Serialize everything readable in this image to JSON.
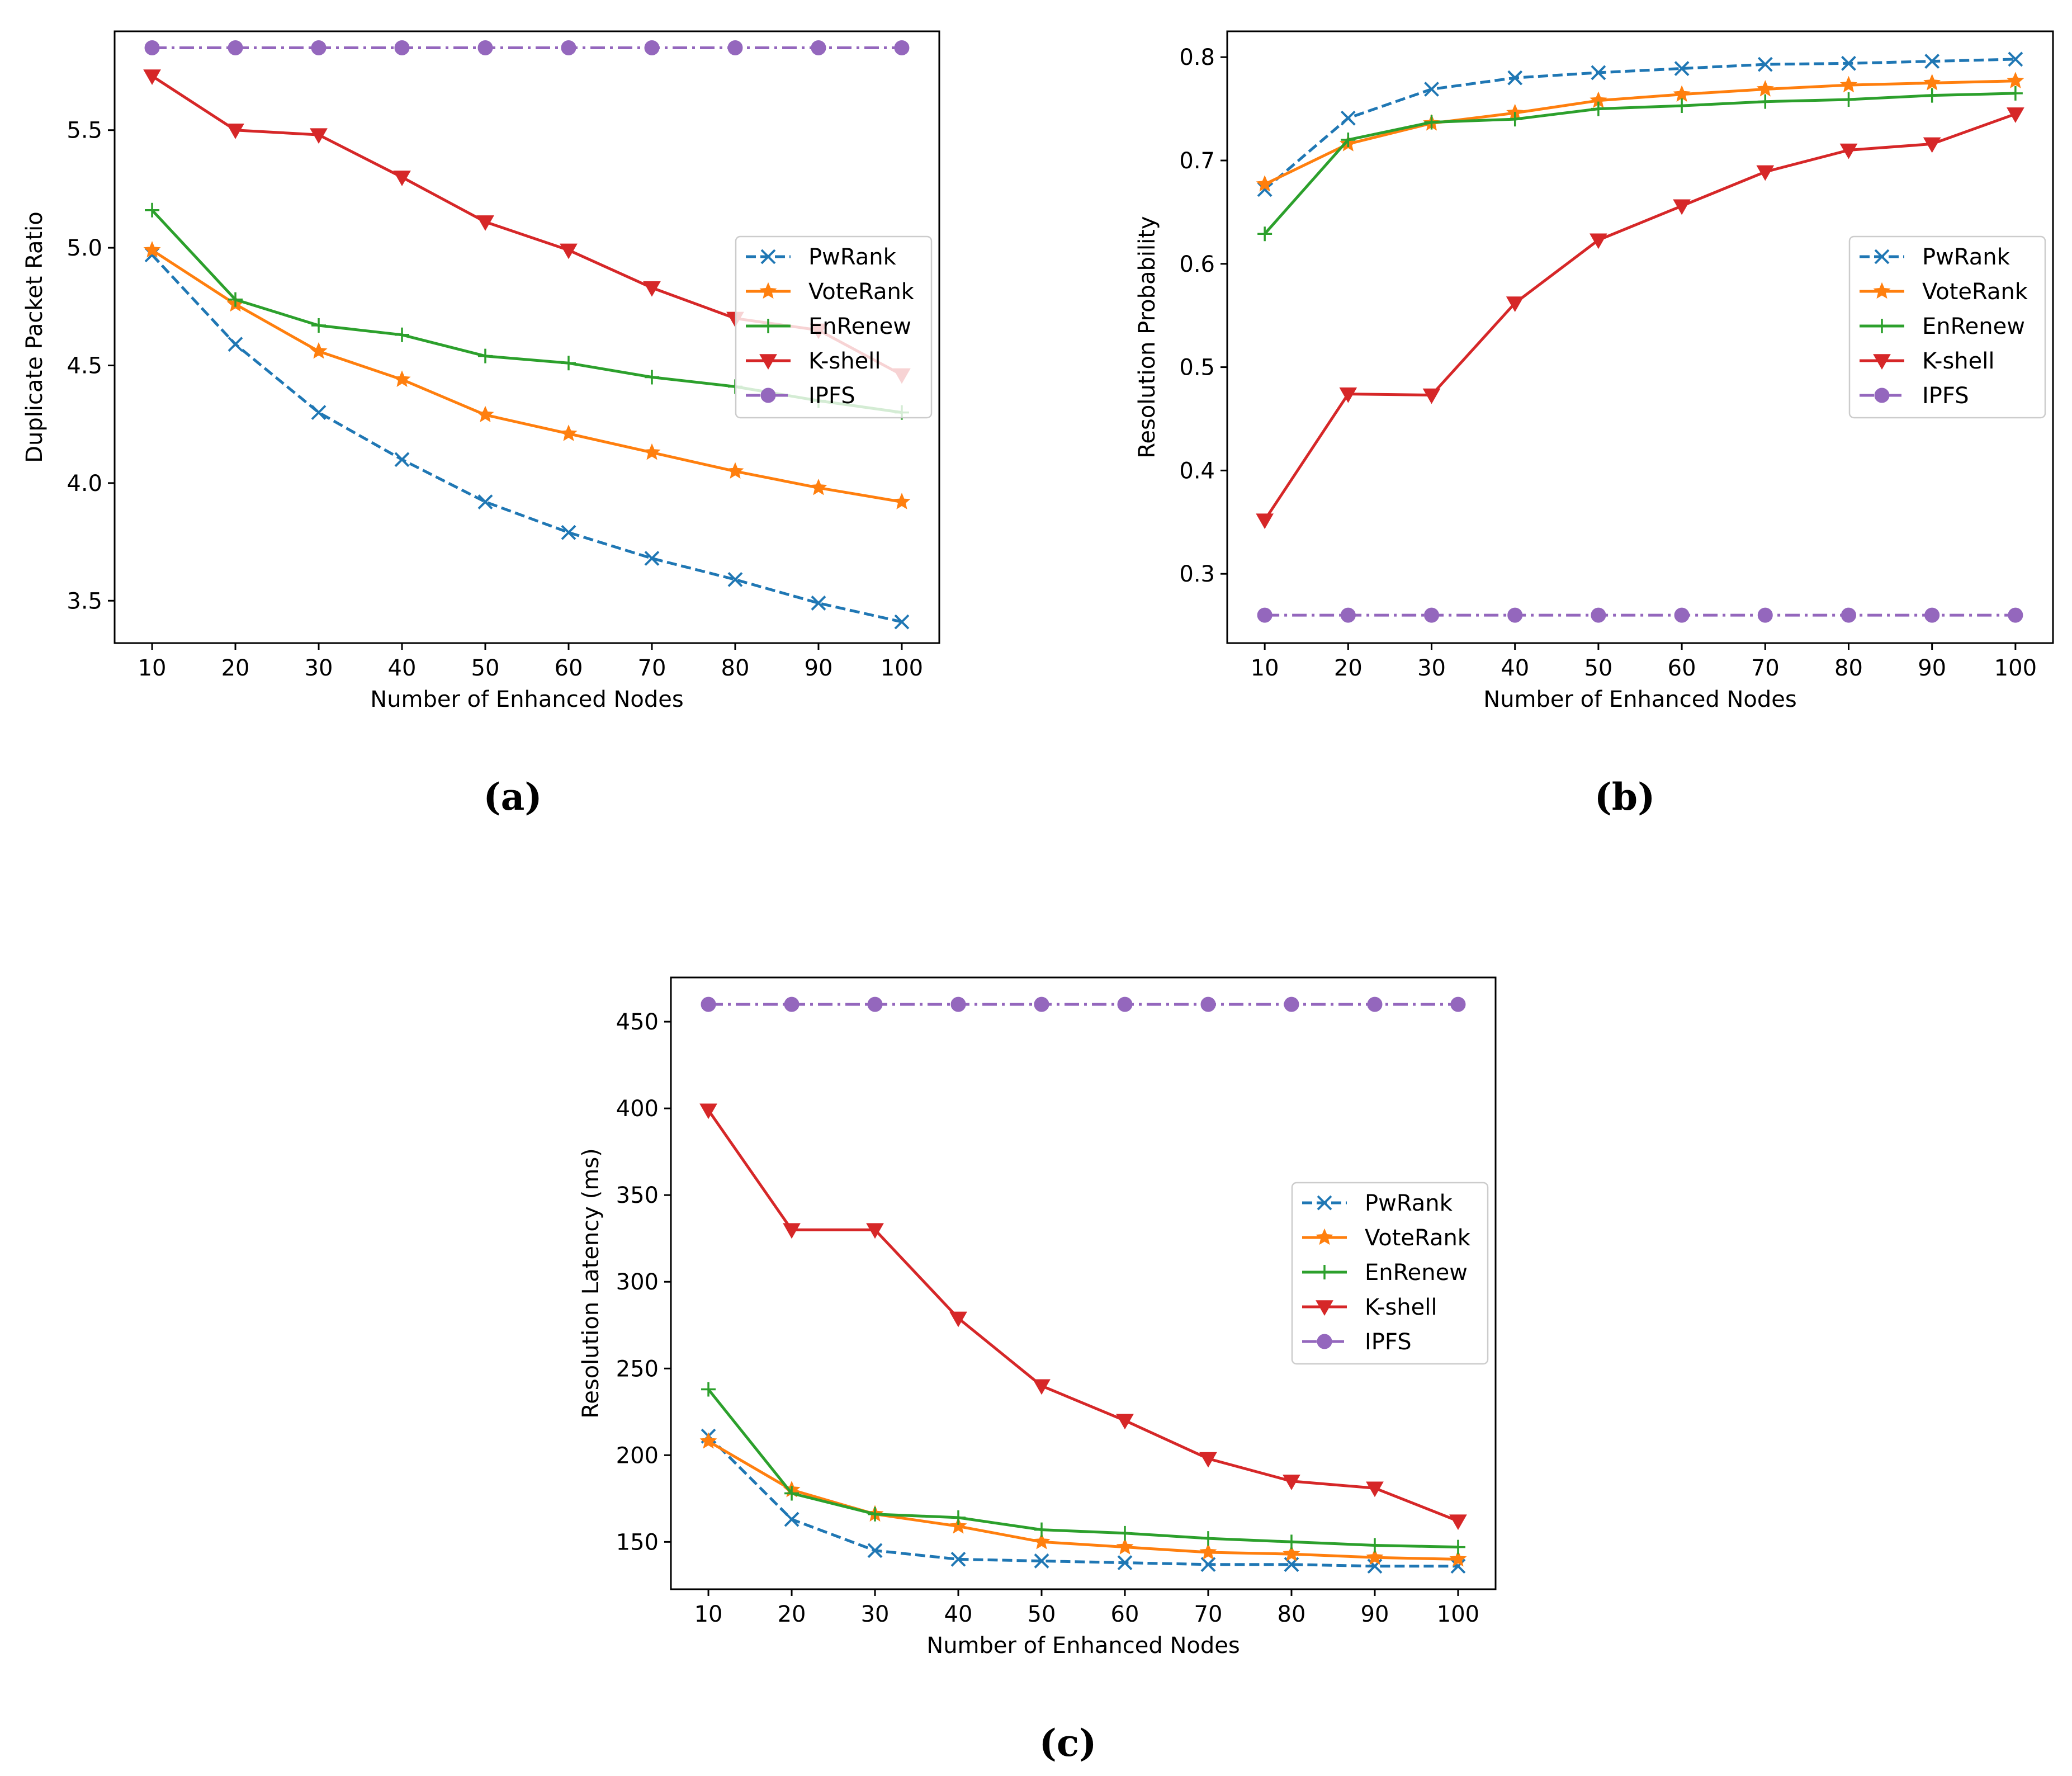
{
  "panels": [
    {
      "caption": "(a)",
      "chart_data": {
        "type": "line",
        "title": "",
        "xlabel": "Number of Enhanced Nodes",
        "ylabel": "Duplicate Packet Ratio",
        "x": [
          10,
          20,
          30,
          40,
          50,
          60,
          70,
          80,
          90,
          100
        ],
        "xlim": [
          5.5,
          104.5
        ],
        "ylim": [
          3.32,
          5.92
        ],
        "yticks": [
          3.5,
          4.0,
          4.5,
          5.0,
          5.5
        ],
        "ytick_labels": [
          "3.5",
          "4.0",
          "4.5",
          "5.0",
          "5.5"
        ],
        "legend_loc": "center-right",
        "grid": false,
        "series": [
          {
            "name": "PwRank",
            "color": "#1f77b4",
            "style": "dashed",
            "marker": "x",
            "values": [
              4.97,
              4.59,
              4.3,
              4.1,
              3.92,
              3.79,
              3.68,
              3.59,
              3.49,
              3.41
            ]
          },
          {
            "name": "VoteRank",
            "color": "#ff7f0e",
            "style": "solid",
            "marker": "star",
            "values": [
              4.99,
              4.76,
              4.56,
              4.44,
              4.29,
              4.21,
              4.13,
              4.05,
              3.98,
              3.92
            ]
          },
          {
            "name": "EnRenew",
            "color": "#2ca02c",
            "style": "solid",
            "marker": "plus",
            "values": [
              5.16,
              4.78,
              4.67,
              4.63,
              4.54,
              4.51,
              4.45,
              4.41,
              4.35,
              4.3
            ]
          },
          {
            "name": "K-shell",
            "color": "#d62728",
            "style": "solid",
            "marker": "triangle-down",
            "values": [
              5.73,
              5.5,
              5.48,
              5.3,
              5.11,
              4.99,
              4.83,
              4.7,
              4.65,
              4.46
            ]
          },
          {
            "name": "IPFS",
            "color": "#9467bd",
            "style": "dashdot",
            "marker": "circle",
            "values": [
              5.85,
              5.85,
              5.85,
              5.85,
              5.85,
              5.85,
              5.85,
              5.85,
              5.85,
              5.85
            ]
          }
        ]
      }
    },
    {
      "caption": "(b)",
      "chart_data": {
        "type": "line",
        "title": "",
        "xlabel": "Number of Enhanced Nodes",
        "ylabel": "Resolution Probability",
        "x": [
          10,
          20,
          30,
          40,
          50,
          60,
          70,
          80,
          90,
          100
        ],
        "xlim": [
          5.5,
          104.5
        ],
        "ylim": [
          0.233,
          0.825
        ],
        "yticks": [
          0.3,
          0.4,
          0.5,
          0.6,
          0.7,
          0.8
        ],
        "ytick_labels": [
          "0.3",
          "0.4",
          "0.5",
          "0.6",
          "0.7",
          "0.8"
        ],
        "legend_loc": "center-right",
        "grid": false,
        "series": [
          {
            "name": "PwRank",
            "color": "#1f77b4",
            "style": "dashed",
            "marker": "x",
            "values": [
              0.672,
              0.741,
              0.769,
              0.78,
              0.785,
              0.789,
              0.793,
              0.794,
              0.796,
              0.798
            ]
          },
          {
            "name": "VoteRank",
            "color": "#ff7f0e",
            "style": "solid",
            "marker": "star",
            "values": [
              0.677,
              0.716,
              0.736,
              0.746,
              0.758,
              0.764,
              0.769,
              0.773,
              0.775,
              0.777
            ]
          },
          {
            "name": "EnRenew",
            "color": "#2ca02c",
            "style": "solid",
            "marker": "plus",
            "values": [
              0.629,
              0.72,
              0.737,
              0.74,
              0.75,
              0.753,
              0.757,
              0.759,
              0.763,
              0.765
            ]
          },
          {
            "name": "K-shell",
            "color": "#d62728",
            "style": "solid",
            "marker": "triangle-down",
            "values": [
              0.352,
              0.474,
              0.473,
              0.562,
              0.623,
              0.656,
              0.689,
              0.71,
              0.716,
              0.745
            ]
          },
          {
            "name": "IPFS",
            "color": "#9467bd",
            "style": "dashdot",
            "marker": "circle",
            "values": [
              0.26,
              0.26,
              0.26,
              0.26,
              0.26,
              0.26,
              0.26,
              0.26,
              0.26,
              0.26
            ]
          }
        ]
      }
    },
    {
      "caption": "(c)",
      "chart_data": {
        "type": "line",
        "title": "",
        "xlabel": "Number of Enhanced Nodes",
        "ylabel": "Resolution Latency (ms)",
        "x": [
          10,
          20,
          30,
          40,
          50,
          60,
          70,
          80,
          90,
          100
        ],
        "xlim": [
          5.5,
          104.5
        ],
        "ylim": [
          122.7,
          475.5
        ],
        "yticks": [
          150,
          200,
          250,
          300,
          350,
          400,
          450
        ],
        "ytick_labels": [
          "150",
          "200",
          "250",
          "300",
          "350",
          "400",
          "450"
        ],
        "legend_loc": "center-right",
        "grid": false,
        "series": [
          {
            "name": "PwRank",
            "color": "#1f77b4",
            "style": "dashed",
            "marker": "x",
            "values": [
              211,
              163,
              145,
              140,
              139,
              138,
              137,
              137,
              136,
              136
            ]
          },
          {
            "name": "VoteRank",
            "color": "#ff7f0e",
            "style": "solid",
            "marker": "star",
            "values": [
              208,
              180,
              166,
              159,
              150,
              147,
              144,
              143,
              141,
              140
            ]
          },
          {
            "name": "EnRenew",
            "color": "#2ca02c",
            "style": "solid",
            "marker": "plus",
            "values": [
              238,
              178,
              166,
              164,
              157,
              155,
              152,
              150,
              148,
              147
            ]
          },
          {
            "name": "K-shell",
            "color": "#d62728",
            "style": "solid",
            "marker": "triangle-down",
            "values": [
              399,
              330,
              330,
              279,
              240,
              220,
              198,
              185,
              181,
              162
            ]
          },
          {
            "name": "IPFS",
            "color": "#9467bd",
            "style": "dashdot",
            "marker": "circle",
            "values": [
              460,
              460,
              460,
              460,
              460,
              460,
              460,
              460,
              460,
              460
            ]
          }
        ]
      }
    }
  ]
}
